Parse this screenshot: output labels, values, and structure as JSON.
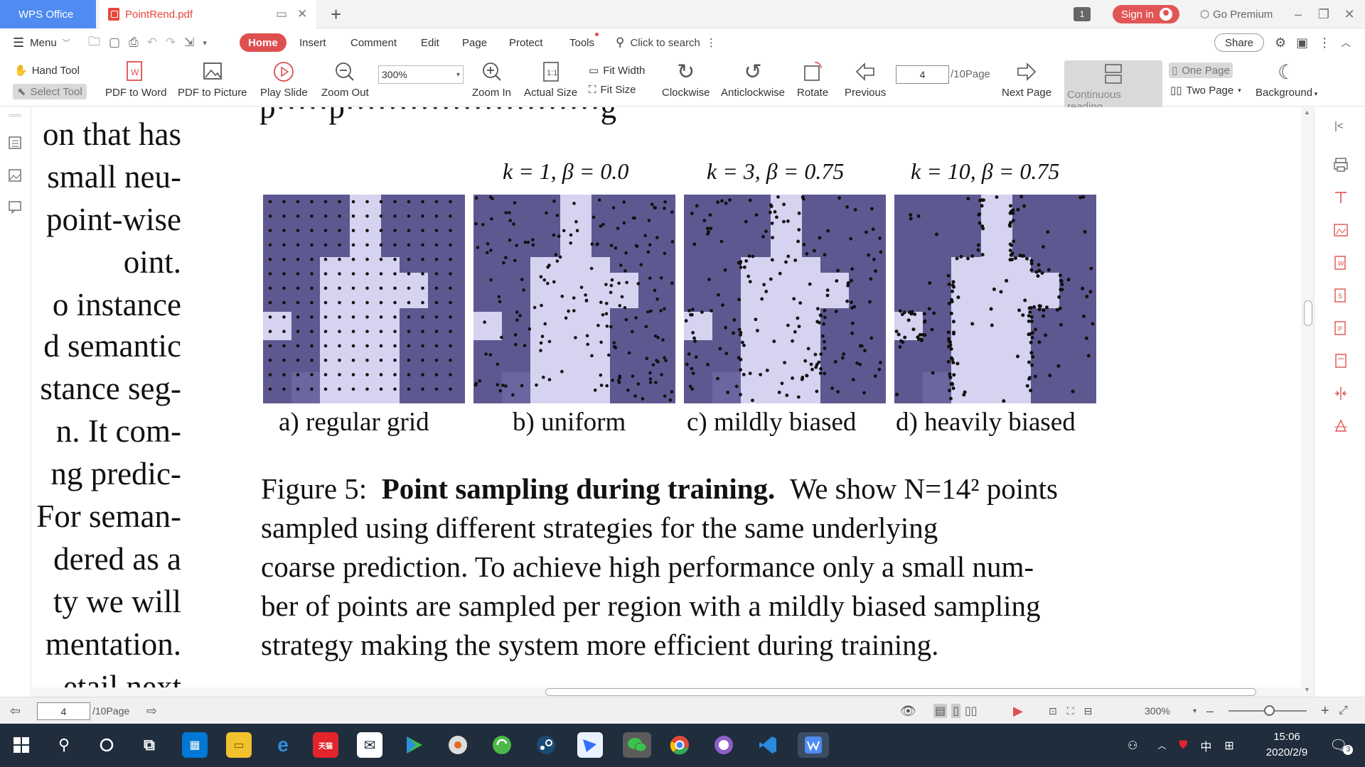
{
  "titlebar": {
    "app_name": "WPS Office",
    "doc_name": "PointRend.pdf",
    "window_count": "1",
    "signin_label": "Sign in",
    "premium_label": "Go Premium"
  },
  "menu": {
    "menu_label": "Menu",
    "tabs": [
      "Home",
      "Insert",
      "Comment",
      "Edit",
      "Page",
      "Protect",
      "Tools"
    ],
    "search_placeholder": "Click to search",
    "share_label": "Share"
  },
  "toolbar": {
    "hand_tool": "Hand Tool",
    "select_tool": "Select Tool",
    "pdf_to_word": "PDF to Word",
    "pdf_to_picture": "PDF to Picture",
    "play_slide": "Play Slide",
    "zoom_out": "Zoom Out",
    "zoom_value": "300%",
    "zoom_in": "Zoom In",
    "actual_size": "Actual Size",
    "fit_width": "Fit Width",
    "fit_size": "Fit Size",
    "clockwise": "Clockwise",
    "anticlockwise": "Anticlockwise",
    "rotate": "Rotate",
    "previous": "Previous",
    "current_page": "4",
    "page_total": "/10Page",
    "next_page": "Next Page",
    "continuous_reading": "Continuous reading",
    "one_page": "One Page",
    "two_page": "Two Page",
    "background": "Background"
  },
  "document": {
    "left_column_lines": [
      "on that has",
      "small neu-",
      "point-wise",
      "oint.",
      "o instance",
      "d semantic",
      "stance seg-",
      "n.  It com-",
      "ng predic-",
      "For seman-",
      "dered as a",
      "ty we will",
      "mentation.",
      "etail next"
    ],
    "figure": {
      "panel_titles": [
        "k = 1, β = 0.0",
        "k = 3, β = 0.75",
        "k = 10, β = 0.75"
      ],
      "subcaptions": [
        "a) regular grid",
        "b) uniform",
        "c) mildly biased",
        "d) heavily biased"
      ],
      "caption_label": "Figure 5:",
      "caption_bold": "Point sampling during training.",
      "caption_lines": [
        "We show N=14² points sampled using different strategies for the same underlying",
        "coarse prediction. To achieve high performance only a small num-",
        "ber of points are sampled per region with a mildly biased sampling",
        "strategy making the system more efficient during training."
      ]
    }
  },
  "statusbar": {
    "current_page": "4",
    "page_total": "/10Page",
    "zoom": "300%"
  },
  "taskbar": {
    "time": "15:06",
    "date": "2020/2/9",
    "ime_lang": "中",
    "notification_count": "3"
  },
  "colors": {
    "accent_red": "#e04f4f",
    "wps_blue": "#4f8bf0",
    "mask_dark": "#5e5890",
    "mask_light": "#d6d3f0"
  }
}
